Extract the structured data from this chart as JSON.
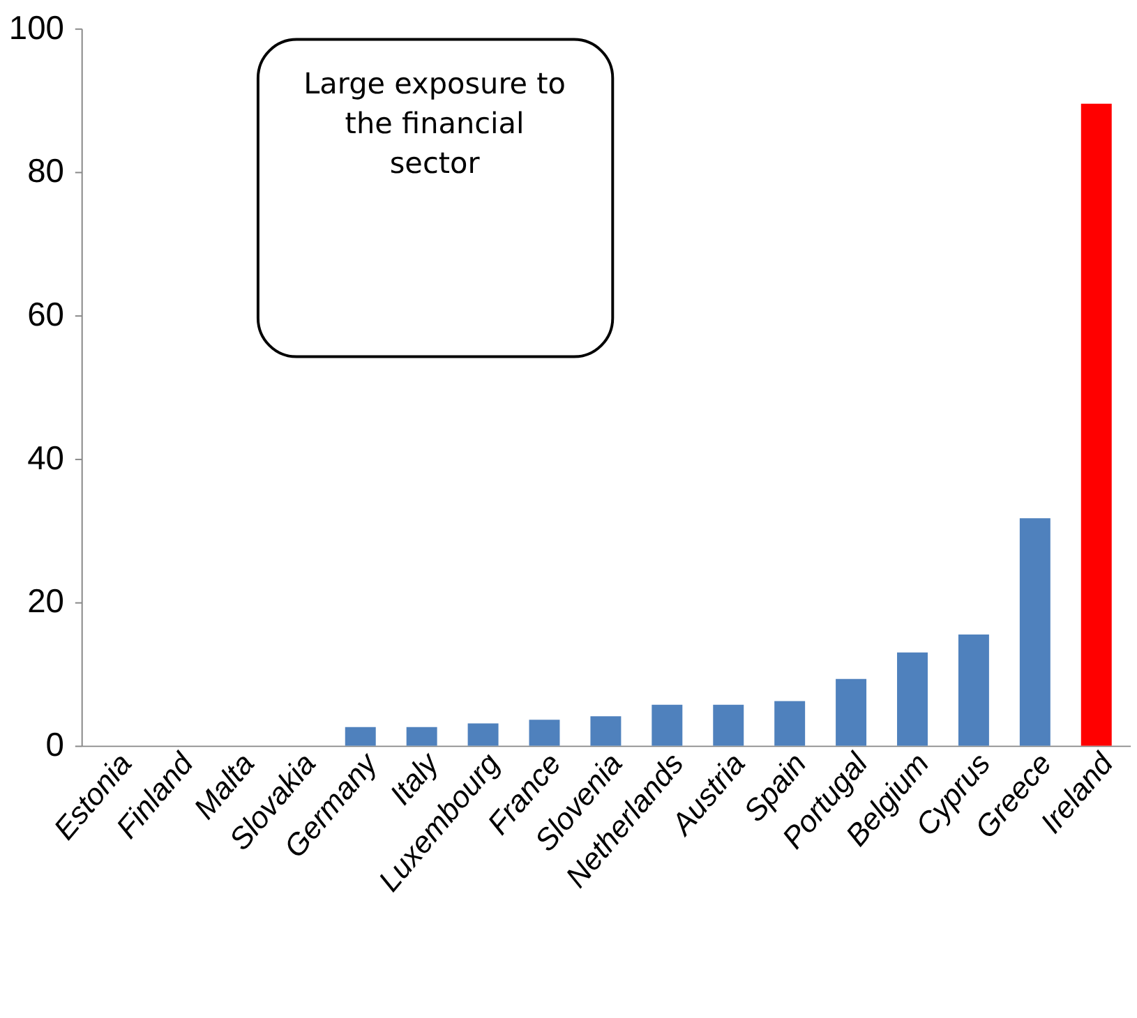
{
  "chart_data": {
    "type": "bar",
    "categories": [
      "Estonia",
      "Finland",
      "Malta",
      "Slovakia",
      "Germany",
      "Italy",
      "Luxembourg",
      "France",
      "Slovenia",
      "Netherlands",
      "Austria",
      "Spain",
      "Portugal",
      "Belgium",
      "Cyprus",
      "Greece",
      "Ireland"
    ],
    "values": [
      0,
      0,
      0,
      0,
      2.6,
      2.6,
      3.1,
      3.6,
      4.1,
      5.7,
      5.7,
      6.2,
      9.3,
      13.0,
      15.5,
      31.7,
      89.5
    ],
    "colors": [
      "#4f81bd",
      "#4f81bd",
      "#4f81bd",
      "#4f81bd",
      "#4f81bd",
      "#4f81bd",
      "#4f81bd",
      "#4f81bd",
      "#4f81bd",
      "#4f81bd",
      "#4f81bd",
      "#4f81bd",
      "#4f81bd",
      "#4f81bd",
      "#4f81bd",
      "#4f81bd",
      "#ff0000"
    ],
    "ylim": [
      0,
      100
    ],
    "yticks": [
      0,
      20,
      40,
      60,
      80,
      100
    ],
    "grid": false,
    "legend": false,
    "annotations": [
      "Large exposure to the financial sector"
    ]
  }
}
